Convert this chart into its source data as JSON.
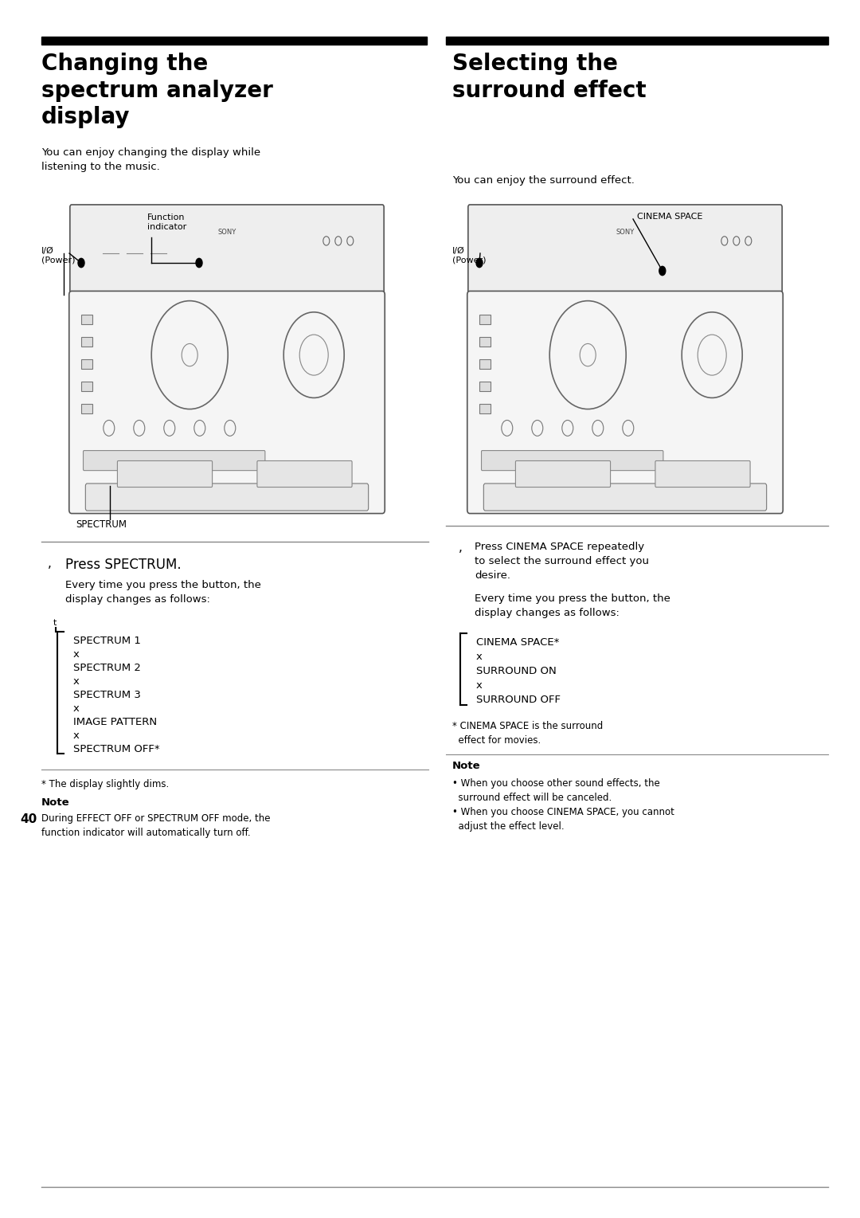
{
  "bg_color": "#ffffff",
  "text_color": "#000000",
  "page_number": "40",
  "left_title": "Changing the\nspectrum analyzer\ndisplay",
  "right_title": "Selecting the\nsurround effect",
  "left_body": "You can enjoy changing the display while\nlistening to the music.",
  "right_body": "You can enjoy the surround effect.",
  "left_labels": {
    "power": "I/Ø\n(Power)",
    "function": "Function\nindicator",
    "spectrum_label": "SPECTRUM"
  },
  "right_labels": {
    "power": "I/Ø\n(Power)",
    "cinema": "CINEMA SPACE"
  },
  "left_step1_bullet": ",",
  "left_step1_text": "Press SPECTRUM.",
  "left_step1_body": "Every time you press the button, the\ndisplay changes as follows:",
  "left_cycle": [
    "SPECTRUM 1",
    "x",
    "SPECTRUM 2",
    "x",
    "SPECTRUM 3",
    "x",
    "IMAGE PATTERN",
    "x",
    "SPECTRUM OFF*"
  ],
  "left_footnote": "* The display slightly dims.",
  "left_note_title": "Note",
  "left_note_body": "During EFFECT OFF or SPECTRUM OFF mode, the\nfunction indicator will automatically turn off.",
  "right_step1_bullet": ",",
  "right_step1_text": "Press CINEMA SPACE repeatedly\nto select the surround effect you\ndesire.",
  "right_step1_body": "Every time you press the button, the\ndisplay changes as follows:",
  "right_cycle": [
    "CINEMA SPACE*",
    "x",
    "SURROUND ON",
    "x",
    "SURROUND OFF"
  ],
  "right_footnote": "* CINEMA SPACE is the surround\n  effect for movies.",
  "right_note_title": "Note",
  "right_note_body": "• When you choose other sound effects, the\n  surround effect will be canceled.\n• When you choose CINEMA SPACE, you cannot\n  adjust the effect level."
}
